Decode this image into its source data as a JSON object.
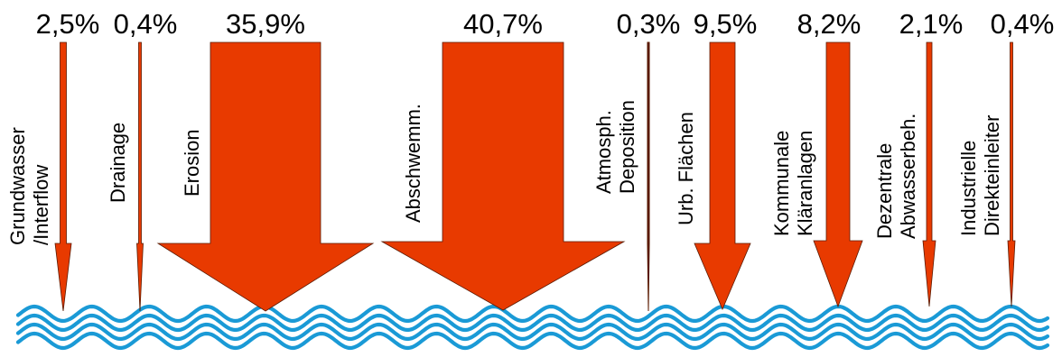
{
  "colors": {
    "arrow_fill": "#e83a00",
    "arrow_stroke": "#5a1a00",
    "water": "#1a9ad6",
    "text": "#000000"
  },
  "pathways": [
    {
      "id": "grundwasser",
      "percent": "2,5%",
      "value": 2.5,
      "label_lines": [
        "Grundwasser",
        "/Interflow"
      ]
    },
    {
      "id": "drainage",
      "percent": "0,4%",
      "value": 0.4,
      "label_lines": [
        "Drainage"
      ]
    },
    {
      "id": "erosion",
      "percent": "35,9%",
      "value": 35.9,
      "label_lines": [
        "Erosion"
      ]
    },
    {
      "id": "abschwemm",
      "percent": "40,7%",
      "value": 40.7,
      "label_lines": [
        "Abschwemm."
      ]
    },
    {
      "id": "atmosph",
      "percent": "0,3%",
      "value": 0.3,
      "label_lines": [
        "Atmosph.",
        "Deposition"
      ]
    },
    {
      "id": "urb",
      "percent": "9,5%",
      "value": 9.5,
      "label_lines": [
        "Urb. Flächen"
      ]
    },
    {
      "id": "kommunale",
      "percent": "8,2%",
      "value": 8.2,
      "label_lines": [
        "Kommunale",
        "Kläranlagen"
      ]
    },
    {
      "id": "dezentrale",
      "percent": "2,1%",
      "value": 2.1,
      "label_lines": [
        "Dezentrale",
        "Abwasserbeh."
      ]
    },
    {
      "id": "industrielle",
      "percent": "0,4%",
      "value": 0.4,
      "label_lines": [
        "Industrielle",
        "Direkteinleiter"
      ]
    }
  ],
  "water_icon": "wave-water-body"
}
